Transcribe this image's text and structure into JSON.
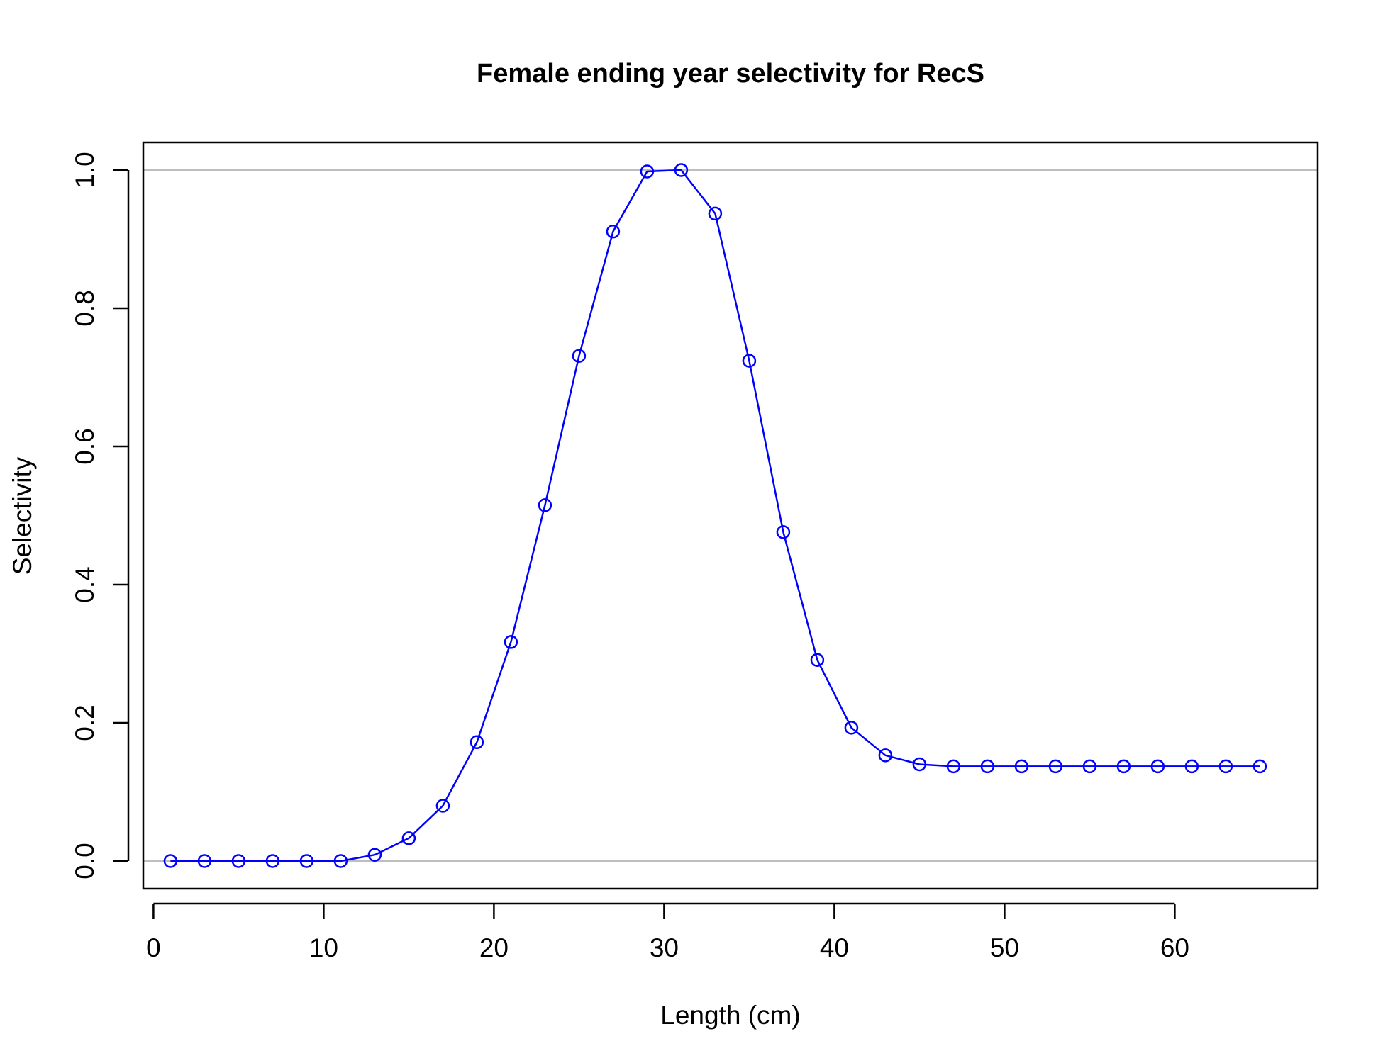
{
  "chart_data": {
    "type": "line",
    "title": "Female ending year selectivity for RecS",
    "xlabel": "Length (cm)",
    "ylabel": "Selectivity",
    "xlim": [
      -0.6,
      68.4
    ],
    "ylim": [
      -0.04,
      1.04
    ],
    "x_ticks": [
      0,
      10,
      20,
      30,
      40,
      50,
      60
    ],
    "y_ticks": [
      0.0,
      0.2,
      0.4,
      0.6,
      0.8,
      1.0
    ],
    "x_tick_labels": [
      "0",
      "10",
      "20",
      "30",
      "40",
      "50",
      "60"
    ],
    "y_tick_labels": [
      "0.0",
      "0.2",
      "0.4",
      "0.6",
      "0.8",
      "1.0"
    ],
    "reference_lines": [
      0,
      1
    ],
    "reference_line_color": "#bebebe",
    "grid": false,
    "legend": "none",
    "series": [
      {
        "color": "#0000ff",
        "marker": "open-circle",
        "x": [
          1,
          3,
          5,
          7,
          9,
          11,
          13,
          15,
          17,
          19,
          21,
          23,
          25,
          27,
          29,
          31,
          33,
          35,
          37,
          39,
          41,
          43,
          45,
          47,
          49,
          51,
          53,
          55,
          57,
          59,
          61,
          63,
          65
        ],
        "y": [
          0.0,
          0.0,
          0.0,
          0.0,
          0.0,
          0.0,
          0.009,
          0.033,
          0.08,
          0.172,
          0.317,
          0.515,
          0.731,
          0.911,
          0.998,
          1.0,
          0.937,
          0.724,
          0.476,
          0.291,
          0.193,
          0.153,
          0.14,
          0.137,
          0.137,
          0.137,
          0.137,
          0.137,
          0.137,
          0.137,
          0.137,
          0.137,
          0.137
        ]
      }
    ]
  }
}
